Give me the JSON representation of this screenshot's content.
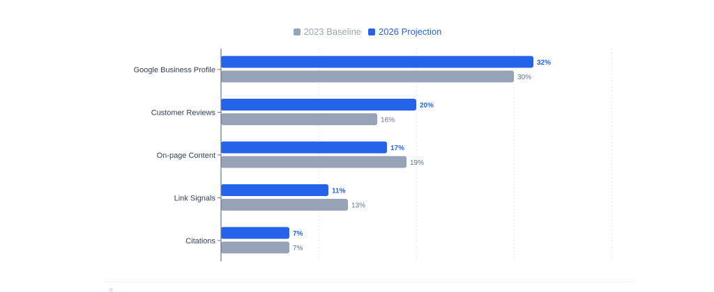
{
  "legend": {
    "baseline_label": "2023 Baseline",
    "projection_label": "2026 Projection"
  },
  "colors": {
    "baseline": "#97a3b6",
    "projection": "#2563eb",
    "axis": "#64748b",
    "grid": "#e2e8f0",
    "category_text": "#334155",
    "baseline_label_text": "#64748b",
    "projection_label_text": "#2563eb"
  },
  "chart_data": {
    "type": "bar",
    "orientation": "horizontal",
    "categories": [
      "Google Business Profile",
      "Customer Reviews",
      "On-page Content",
      "Link Signals",
      "Citations"
    ],
    "series": [
      {
        "name": "2026 Projection",
        "values": [
          32,
          20,
          17,
          11,
          7
        ]
      },
      {
        "name": "2023 Baseline",
        "values": [
          30,
          16,
          19,
          13,
          7
        ]
      }
    ],
    "value_suffix": "%",
    "xlim": [
      0,
      40
    ],
    "grid": "vertical-dashed",
    "legend_position": "top-center"
  }
}
